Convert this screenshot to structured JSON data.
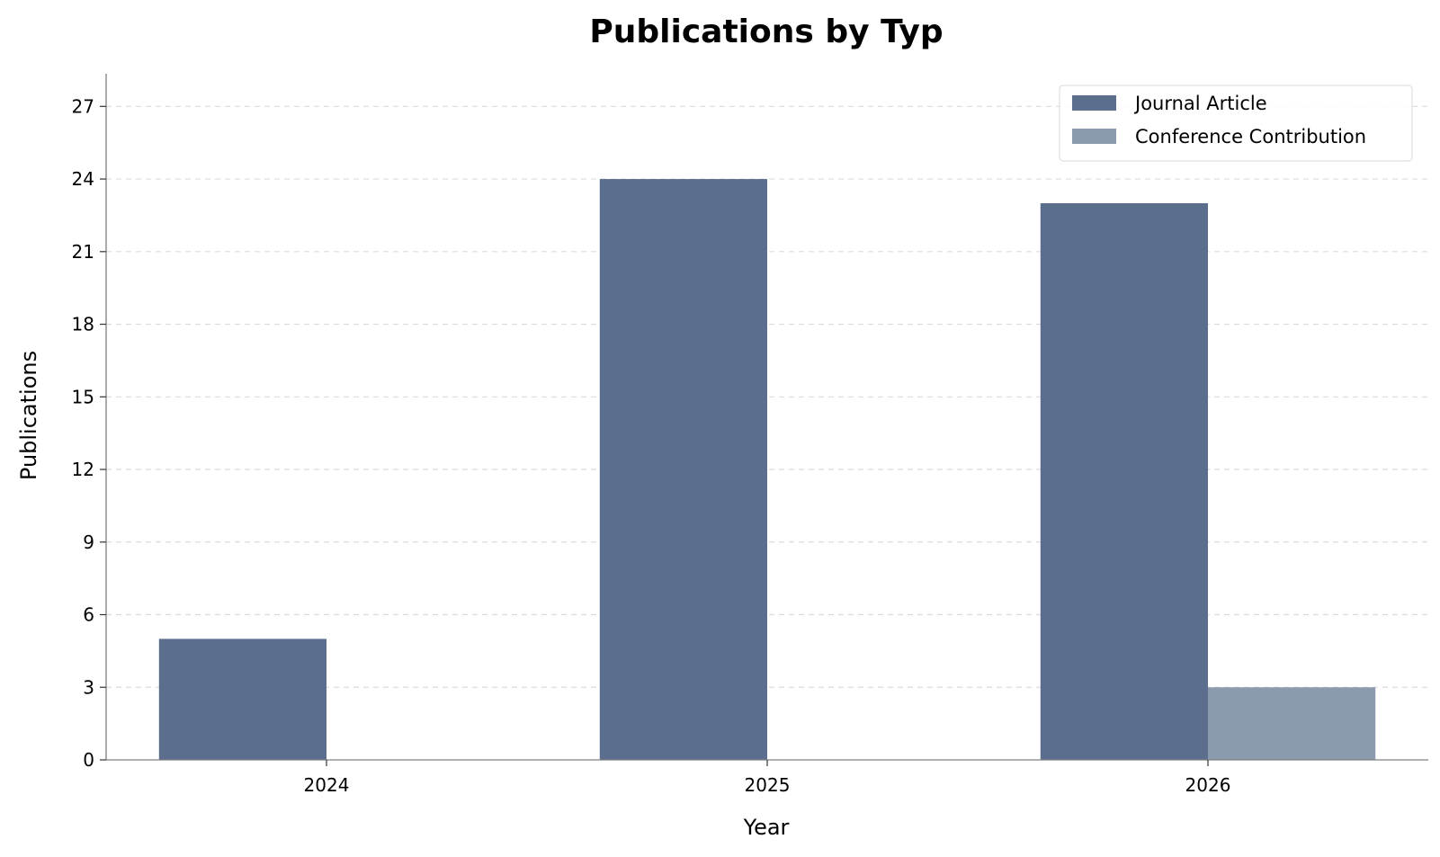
{
  "chart_data": {
    "type": "bar",
    "title": "Publications by Typ",
    "xlabel": "Year",
    "ylabel": "Publications",
    "categories": [
      "2024",
      "2025",
      "2026"
    ],
    "series": [
      {
        "name": "Journal Article",
        "values": [
          5,
          24,
          23
        ],
        "color": "#5c6e8d"
      },
      {
        "name": "Conference Contribution",
        "values": [
          0,
          0,
          3
        ],
        "color": "#8b9aaf"
      }
    ],
    "ylim": [
      0,
      28.35
    ],
    "yticks": [
      "0",
      "3",
      "6",
      "9",
      "12",
      "15",
      "18",
      "21",
      "24",
      "27"
    ],
    "grid": "horizontal dashed",
    "legend_position": "top-right"
  }
}
